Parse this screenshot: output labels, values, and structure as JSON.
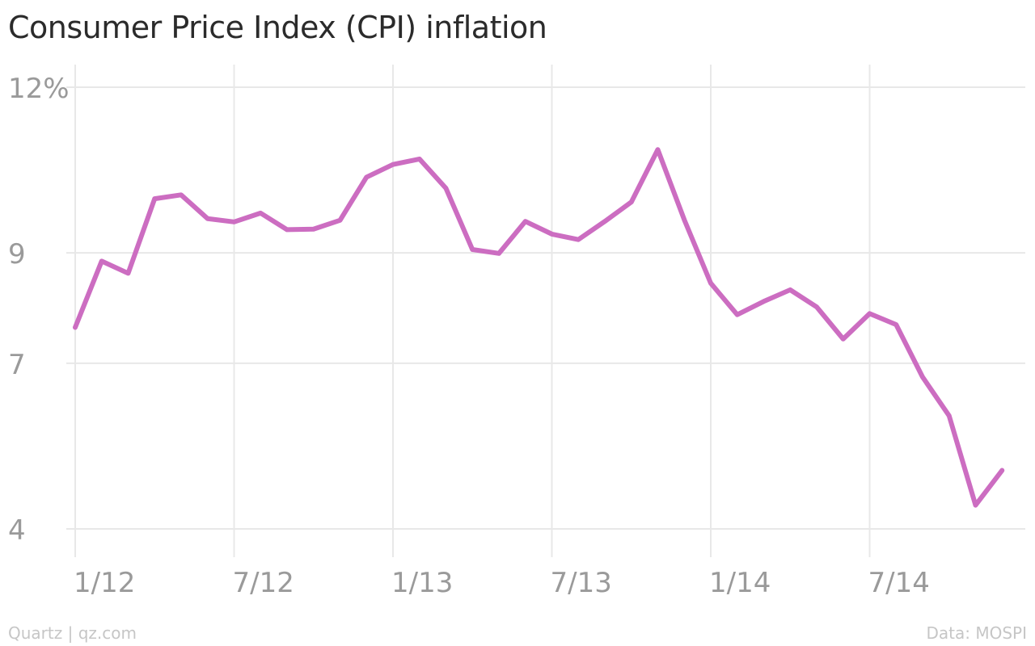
{
  "title": "Consumer Price Index (CPI) inflation",
  "footer": {
    "credit": "Quartz | qz.com",
    "source": "Data: MOSPI"
  },
  "colors": {
    "line": "#cc6dc1",
    "grid": "#e8e8e8",
    "tick_text": "#9a9a9a",
    "title": "#2b2b2b",
    "footer": "#c6c6c6"
  },
  "chart_data": {
    "type": "line",
    "title": "Consumer Price Index (CPI) inflation",
    "xlabel": "",
    "ylabel": "",
    "grid": true,
    "x_start": "2012-01",
    "x_step_months": 1,
    "x": [
      "2012-01",
      "2012-02",
      "2012-03",
      "2012-04",
      "2012-05",
      "2012-06",
      "2012-07",
      "2012-08",
      "2012-09",
      "2012-10",
      "2012-11",
      "2012-12",
      "2013-01",
      "2013-02",
      "2013-03",
      "2013-04",
      "2013-05",
      "2013-06",
      "2013-07",
      "2013-08",
      "2013-09",
      "2013-10",
      "2013-11",
      "2013-12",
      "2014-01",
      "2014-02",
      "2014-03",
      "2014-04",
      "2014-05",
      "2014-06",
      "2014-07",
      "2014-08",
      "2014-09",
      "2014-10",
      "2014-11",
      "2014-12"
    ],
    "series": [
      {
        "values": [
          7.65,
          8.85,
          8.63,
          9.98,
          10.05,
          9.62,
          9.56,
          9.72,
          9.42,
          9.43,
          9.59,
          10.37,
          10.6,
          10.7,
          10.17,
          9.06,
          8.99,
          9.57,
          9.34,
          9.24,
          9.57,
          9.92,
          10.87,
          9.6,
          8.45,
          7.88,
          8.12,
          8.33,
          8.02,
          7.44,
          7.9,
          7.7,
          6.75,
          6.05,
          4.43,
          5.06
        ]
      }
    ],
    "ylim": [
      4,
      12
    ],
    "y_ticks": [
      4,
      7,
      9,
      12
    ],
    "y_tick_labels": [
      "4",
      "7",
      "9",
      "12%"
    ],
    "x_ticks": [
      "2012-01",
      "2012-07",
      "2013-01",
      "2013-07",
      "2014-01",
      "2014-07"
    ],
    "x_tick_labels": [
      "1/12",
      "7/12",
      "1/13",
      "7/13",
      "1/14",
      "7/14"
    ]
  }
}
